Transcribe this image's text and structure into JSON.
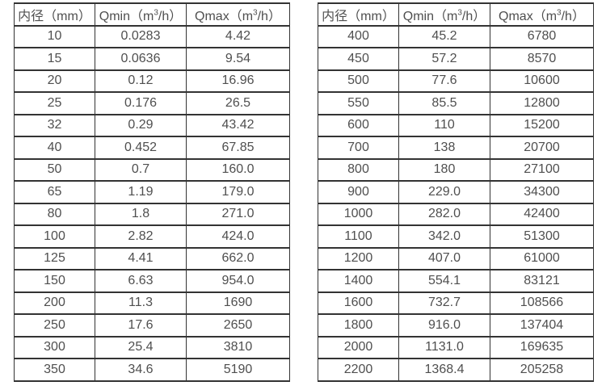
{
  "page": {
    "background_color": "#ffffff",
    "text_color": "#4f4f4f",
    "border_color": "#333333"
  },
  "chart_data": [
    {
      "type": "table",
      "name": "small-diameter-flow-rates",
      "columns": [
        "内径（mm）",
        "Qmin（m³/h）",
        "Qmax（m³/h）"
      ],
      "header_parts": [
        {
          "pre": "内径（mm）",
          "sup": "",
          "post": ""
        },
        {
          "pre": "Qmin（m",
          "sup": "3",
          "post": "/h）"
        },
        {
          "pre": "Qmax（m",
          "sup": "3",
          "post": "/h）"
        }
      ],
      "rows": [
        [
          "10",
          "0.0283",
          "4.42"
        ],
        [
          "15",
          "0.0636",
          "9.54"
        ],
        [
          "20",
          "0.12",
          "16.96"
        ],
        [
          "25",
          "0.176",
          "26.5"
        ],
        [
          "32",
          "0.29",
          "43.42"
        ],
        [
          "40",
          "0.452",
          "67.85"
        ],
        [
          "50",
          "0.7",
          "160.0"
        ],
        [
          "65",
          "1.19",
          "179.0"
        ],
        [
          "80",
          "1.8",
          "271.0"
        ],
        [
          "100",
          "2.82",
          "424.0"
        ],
        [
          "125",
          "4.41",
          "662.0"
        ],
        [
          "150",
          "6.63",
          "954.0"
        ],
        [
          "200",
          "11.3",
          "1690"
        ],
        [
          "250",
          "17.6",
          "2650"
        ],
        [
          "300",
          "25.4",
          "3810"
        ],
        [
          "350",
          "34.6",
          "5190"
        ]
      ]
    },
    {
      "type": "table",
      "name": "large-diameter-flow-rates",
      "columns": [
        "内径（mm）",
        "Qmin（m³/h）",
        "Qmax（m³/h）"
      ],
      "header_parts": [
        {
          "pre": "内径（mm）",
          "sup": "",
          "post": ""
        },
        {
          "pre": "Qmin（m",
          "sup": "3",
          "post": "/h）"
        },
        {
          "pre": "Qmax（m",
          "sup": "3",
          "post": "/h）"
        }
      ],
      "rows": [
        [
          "400",
          "45.2",
          "6780"
        ],
        [
          "450",
          "57.2",
          "8570"
        ],
        [
          "500",
          "77.6",
          "10600"
        ],
        [
          "550",
          "85.5",
          "12800"
        ],
        [
          "600",
          "110",
          "15200"
        ],
        [
          "700",
          "138",
          "20700"
        ],
        [
          "800",
          "180",
          "27100"
        ],
        [
          "900",
          "229.0",
          "34300"
        ],
        [
          "1000",
          "282.0",
          "42400"
        ],
        [
          "1100",
          "342.0",
          "51300"
        ],
        [
          "1200",
          "407.0",
          "61000"
        ],
        [
          "1400",
          "554.1",
          "83121"
        ],
        [
          "1600",
          "732.7",
          "108566"
        ],
        [
          "1800",
          "916.0",
          "137404"
        ],
        [
          "2000",
          "1131.0",
          "169635"
        ],
        [
          "2200",
          "1368.4",
          "205258"
        ]
      ]
    }
  ]
}
